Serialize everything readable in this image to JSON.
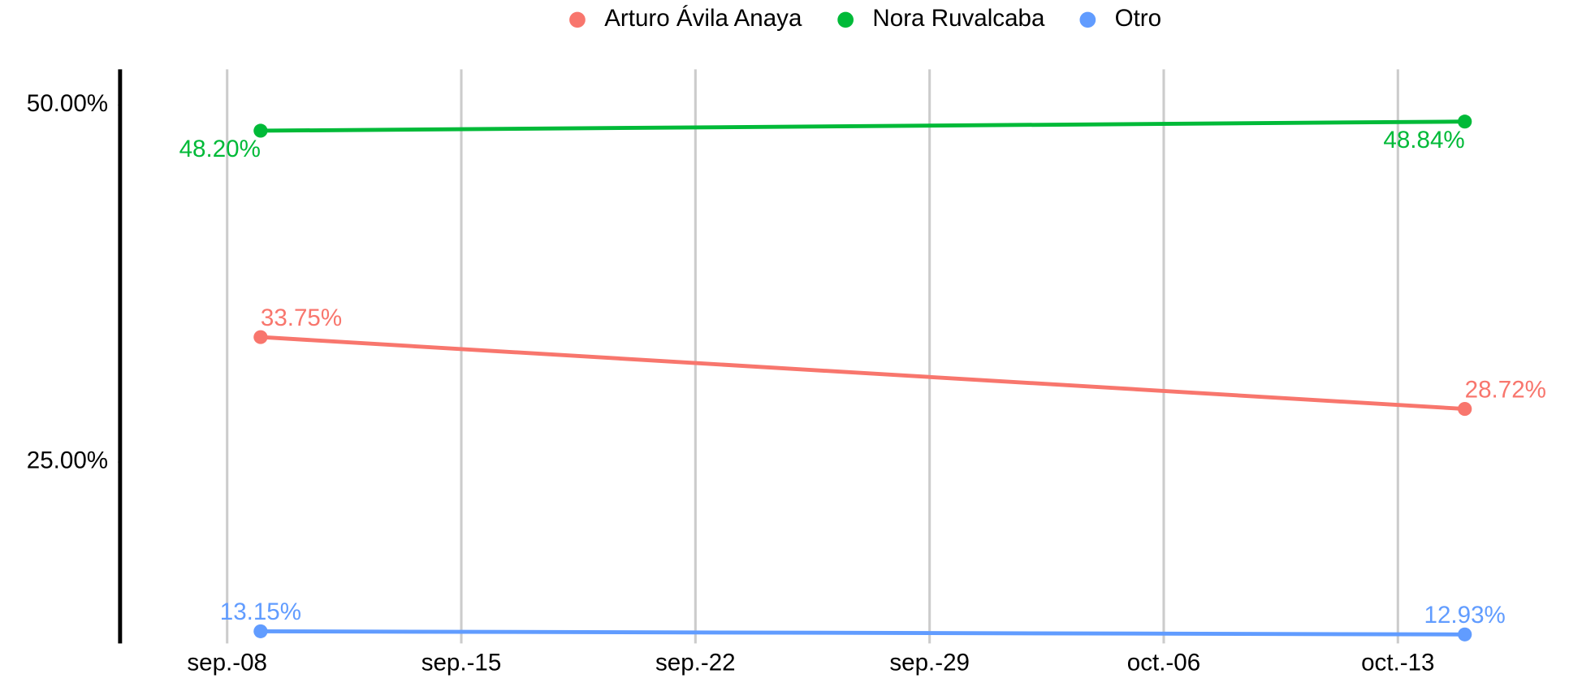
{
  "chart_data": {
    "type": "line",
    "x": [
      "sep.-09",
      "oct.-15"
    ],
    "xticks": [
      "sep.-08",
      "sep.-15",
      "sep.-22",
      "sep.-29",
      "oct.-06",
      "oct.-13"
    ],
    "series": [
      {
        "name": "Arturo Ávila Anaya",
        "color": "#F8766D",
        "values": [
          33.75,
          28.72
        ],
        "value_labels": [
          "33.75%",
          "28.72%"
        ]
      },
      {
        "name": "Nora Ruvalcaba",
        "color": "#00BA38",
        "values": [
          48.2,
          48.84
        ],
        "value_labels": [
          "48.20%",
          "48.84%"
        ]
      },
      {
        "name": "Otro",
        "color": "#619CFF",
        "values": [
          13.15,
          12.93
        ],
        "value_labels": [
          "13.15%",
          "12.93%"
        ]
      }
    ],
    "ylim": [
      12.3,
      52.5
    ],
    "yticks": [
      {
        "value": 25,
        "label": "25.00%"
      },
      {
        "value": 50,
        "label": "50.00%"
      }
    ],
    "grid": true,
    "legend": "top"
  }
}
